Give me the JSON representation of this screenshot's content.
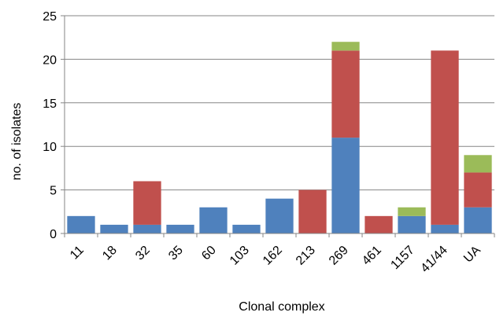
{
  "chart_data": {
    "type": "bar",
    "stacked": true,
    "title": "",
    "xlabel": "Clonal complex",
    "ylabel": "no. of isolates",
    "ylim": [
      0,
      25
    ],
    "yticks": [
      0,
      5,
      10,
      15,
      20,
      25
    ],
    "grid": true,
    "legend": "none",
    "categories": [
      "11",
      "18",
      "32",
      "35",
      "60",
      "103",
      "162",
      "213",
      "269",
      "461",
      "1157",
      "41/44",
      "UA"
    ],
    "series": [
      {
        "color": "#4f81bd",
        "values": [
          2,
          1,
          1,
          1,
          3,
          1,
          4,
          0,
          11,
          0,
          2,
          1,
          3
        ]
      },
      {
        "color": "#c0504d",
        "values": [
          0,
          0,
          5,
          0,
          0,
          0,
          0,
          5,
          10,
          2,
          0,
          20,
          4
        ]
      },
      {
        "color": "#9bbb59",
        "values": [
          0,
          0,
          0,
          0,
          0,
          0,
          0,
          0,
          1,
          0,
          1,
          0,
          2
        ]
      }
    ]
  }
}
